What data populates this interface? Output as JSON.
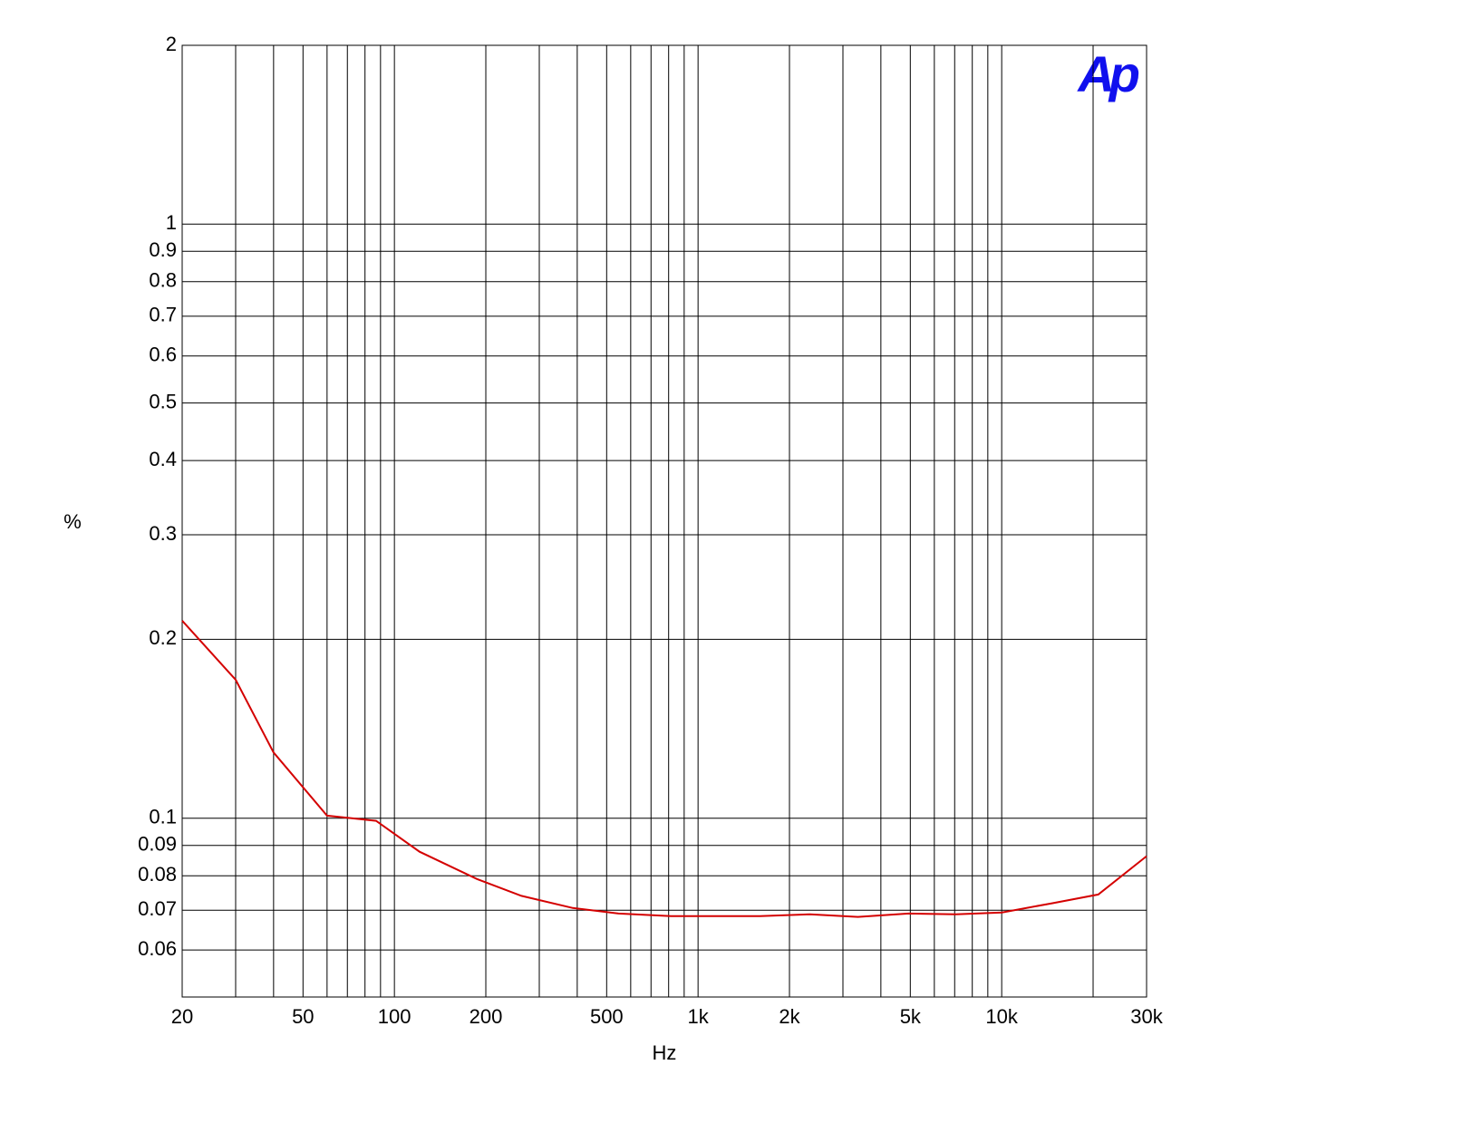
{
  "chart_data": {
    "type": "line",
    "logo": "Ap",
    "xlabel": "Hz",
    "ylabel": "%",
    "xscale": "log",
    "yscale": "log",
    "grid": true,
    "xlim": [
      20,
      30000
    ],
    "ylim": [
      0.05,
      2
    ],
    "xticks": [
      20,
      50,
      100,
      200,
      500,
      {
        "value": 1000,
        "label": "1k"
      },
      {
        "value": 2000,
        "label": "2k"
      },
      {
        "value": 5000,
        "label": "5k"
      },
      {
        "value": 10000,
        "label": "10k"
      },
      {
        "value": 30000,
        "label": "30k"
      }
    ],
    "xminor_ticks": [
      30,
      40,
      60,
      70,
      80,
      90,
      300,
      400,
      600,
      700,
      800,
      900,
      3000,
      4000,
      6000,
      7000,
      8000,
      9000,
      20000
    ],
    "yticks": [
      2,
      1,
      0.9,
      0.8,
      0.7,
      0.6,
      0.5,
      0.4,
      0.3,
      0.2,
      0.1,
      0.09,
      0.08,
      0.07,
      0.06
    ],
    "x": [
      20,
      30,
      40,
      60,
      87,
      121,
      187,
      262,
      387,
      547,
      815,
      1600,
      2334,
      3360,
      4934,
      7060,
      10020,
      14640,
      20800,
      30000
    ],
    "series": [
      {
        "color": "#d40000",
        "values": [
          0.215,
          0.171,
          0.129,
          0.101,
          0.099,
          0.0878,
          0.079,
          0.074,
          0.0706,
          0.0691,
          0.0684,
          0.0684,
          0.0689,
          0.0682,
          0.0691,
          0.0689,
          0.0694,
          0.0719,
          0.0744,
          0.0863
        ]
      }
    ]
  }
}
